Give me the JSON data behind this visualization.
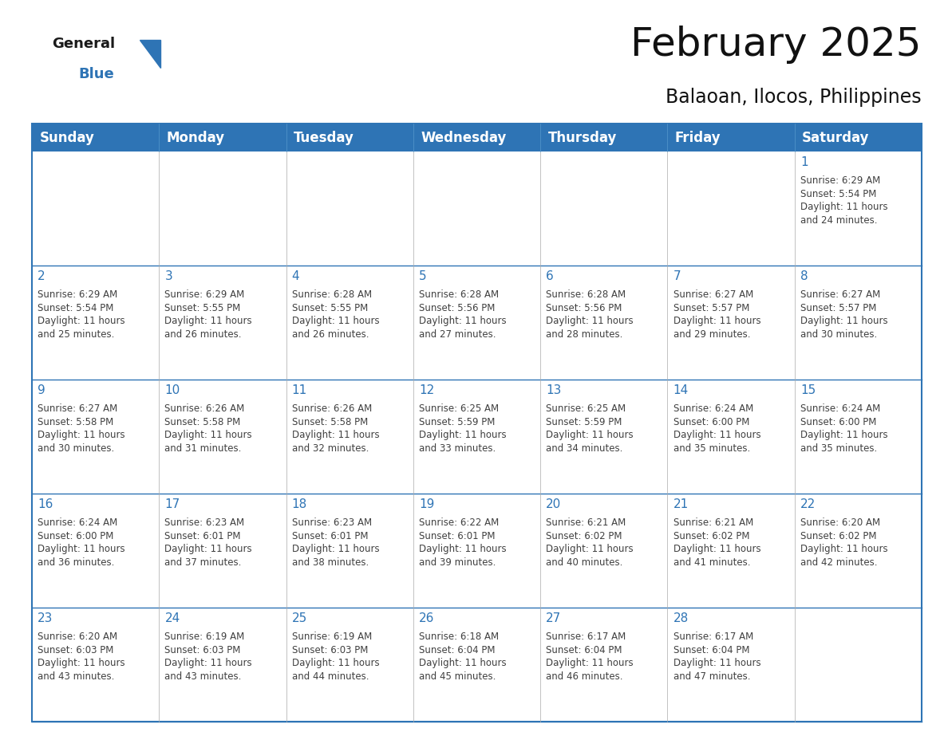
{
  "title": "February 2025",
  "subtitle": "Balaoan, Ilocos, Philippines",
  "header_bg": "#2E74B5",
  "header_text_color": "#FFFFFF",
  "border_color": "#2E74B5",
  "day_number_color": "#2E74B5",
  "info_text_color": "#404040",
  "cell_line_color": "#AAAAAA",
  "days_of_week": [
    "Sunday",
    "Monday",
    "Tuesday",
    "Wednesday",
    "Thursday",
    "Friday",
    "Saturday"
  ],
  "title_fontsize": 36,
  "subtitle_fontsize": 17,
  "header_fontsize": 12,
  "day_num_fontsize": 11,
  "info_fontsize": 8.5,
  "calendar": [
    [
      {
        "day": null,
        "info": null
      },
      {
        "day": null,
        "info": null
      },
      {
        "day": null,
        "info": null
      },
      {
        "day": null,
        "info": null
      },
      {
        "day": null,
        "info": null
      },
      {
        "day": null,
        "info": null
      },
      {
        "day": 1,
        "info": "Sunrise: 6:29 AM\nSunset: 5:54 PM\nDaylight: 11 hours\nand 24 minutes."
      }
    ],
    [
      {
        "day": 2,
        "info": "Sunrise: 6:29 AM\nSunset: 5:54 PM\nDaylight: 11 hours\nand 25 minutes."
      },
      {
        "day": 3,
        "info": "Sunrise: 6:29 AM\nSunset: 5:55 PM\nDaylight: 11 hours\nand 26 minutes."
      },
      {
        "day": 4,
        "info": "Sunrise: 6:28 AM\nSunset: 5:55 PM\nDaylight: 11 hours\nand 26 minutes."
      },
      {
        "day": 5,
        "info": "Sunrise: 6:28 AM\nSunset: 5:56 PM\nDaylight: 11 hours\nand 27 minutes."
      },
      {
        "day": 6,
        "info": "Sunrise: 6:28 AM\nSunset: 5:56 PM\nDaylight: 11 hours\nand 28 minutes."
      },
      {
        "day": 7,
        "info": "Sunrise: 6:27 AM\nSunset: 5:57 PM\nDaylight: 11 hours\nand 29 minutes."
      },
      {
        "day": 8,
        "info": "Sunrise: 6:27 AM\nSunset: 5:57 PM\nDaylight: 11 hours\nand 30 minutes."
      }
    ],
    [
      {
        "day": 9,
        "info": "Sunrise: 6:27 AM\nSunset: 5:58 PM\nDaylight: 11 hours\nand 30 minutes."
      },
      {
        "day": 10,
        "info": "Sunrise: 6:26 AM\nSunset: 5:58 PM\nDaylight: 11 hours\nand 31 minutes."
      },
      {
        "day": 11,
        "info": "Sunrise: 6:26 AM\nSunset: 5:58 PM\nDaylight: 11 hours\nand 32 minutes."
      },
      {
        "day": 12,
        "info": "Sunrise: 6:25 AM\nSunset: 5:59 PM\nDaylight: 11 hours\nand 33 minutes."
      },
      {
        "day": 13,
        "info": "Sunrise: 6:25 AM\nSunset: 5:59 PM\nDaylight: 11 hours\nand 34 minutes."
      },
      {
        "day": 14,
        "info": "Sunrise: 6:24 AM\nSunset: 6:00 PM\nDaylight: 11 hours\nand 35 minutes."
      },
      {
        "day": 15,
        "info": "Sunrise: 6:24 AM\nSunset: 6:00 PM\nDaylight: 11 hours\nand 35 minutes."
      }
    ],
    [
      {
        "day": 16,
        "info": "Sunrise: 6:24 AM\nSunset: 6:00 PM\nDaylight: 11 hours\nand 36 minutes."
      },
      {
        "day": 17,
        "info": "Sunrise: 6:23 AM\nSunset: 6:01 PM\nDaylight: 11 hours\nand 37 minutes."
      },
      {
        "day": 18,
        "info": "Sunrise: 6:23 AM\nSunset: 6:01 PM\nDaylight: 11 hours\nand 38 minutes."
      },
      {
        "day": 19,
        "info": "Sunrise: 6:22 AM\nSunset: 6:01 PM\nDaylight: 11 hours\nand 39 minutes."
      },
      {
        "day": 20,
        "info": "Sunrise: 6:21 AM\nSunset: 6:02 PM\nDaylight: 11 hours\nand 40 minutes."
      },
      {
        "day": 21,
        "info": "Sunrise: 6:21 AM\nSunset: 6:02 PM\nDaylight: 11 hours\nand 41 minutes."
      },
      {
        "day": 22,
        "info": "Sunrise: 6:20 AM\nSunset: 6:02 PM\nDaylight: 11 hours\nand 42 minutes."
      }
    ],
    [
      {
        "day": 23,
        "info": "Sunrise: 6:20 AM\nSunset: 6:03 PM\nDaylight: 11 hours\nand 43 minutes."
      },
      {
        "day": 24,
        "info": "Sunrise: 6:19 AM\nSunset: 6:03 PM\nDaylight: 11 hours\nand 43 minutes."
      },
      {
        "day": 25,
        "info": "Sunrise: 6:19 AM\nSunset: 6:03 PM\nDaylight: 11 hours\nand 44 minutes."
      },
      {
        "day": 26,
        "info": "Sunrise: 6:18 AM\nSunset: 6:04 PM\nDaylight: 11 hours\nand 45 minutes."
      },
      {
        "day": 27,
        "info": "Sunrise: 6:17 AM\nSunset: 6:04 PM\nDaylight: 11 hours\nand 46 minutes."
      },
      {
        "day": 28,
        "info": "Sunrise: 6:17 AM\nSunset: 6:04 PM\nDaylight: 11 hours\nand 47 minutes."
      },
      {
        "day": null,
        "info": null
      }
    ]
  ]
}
